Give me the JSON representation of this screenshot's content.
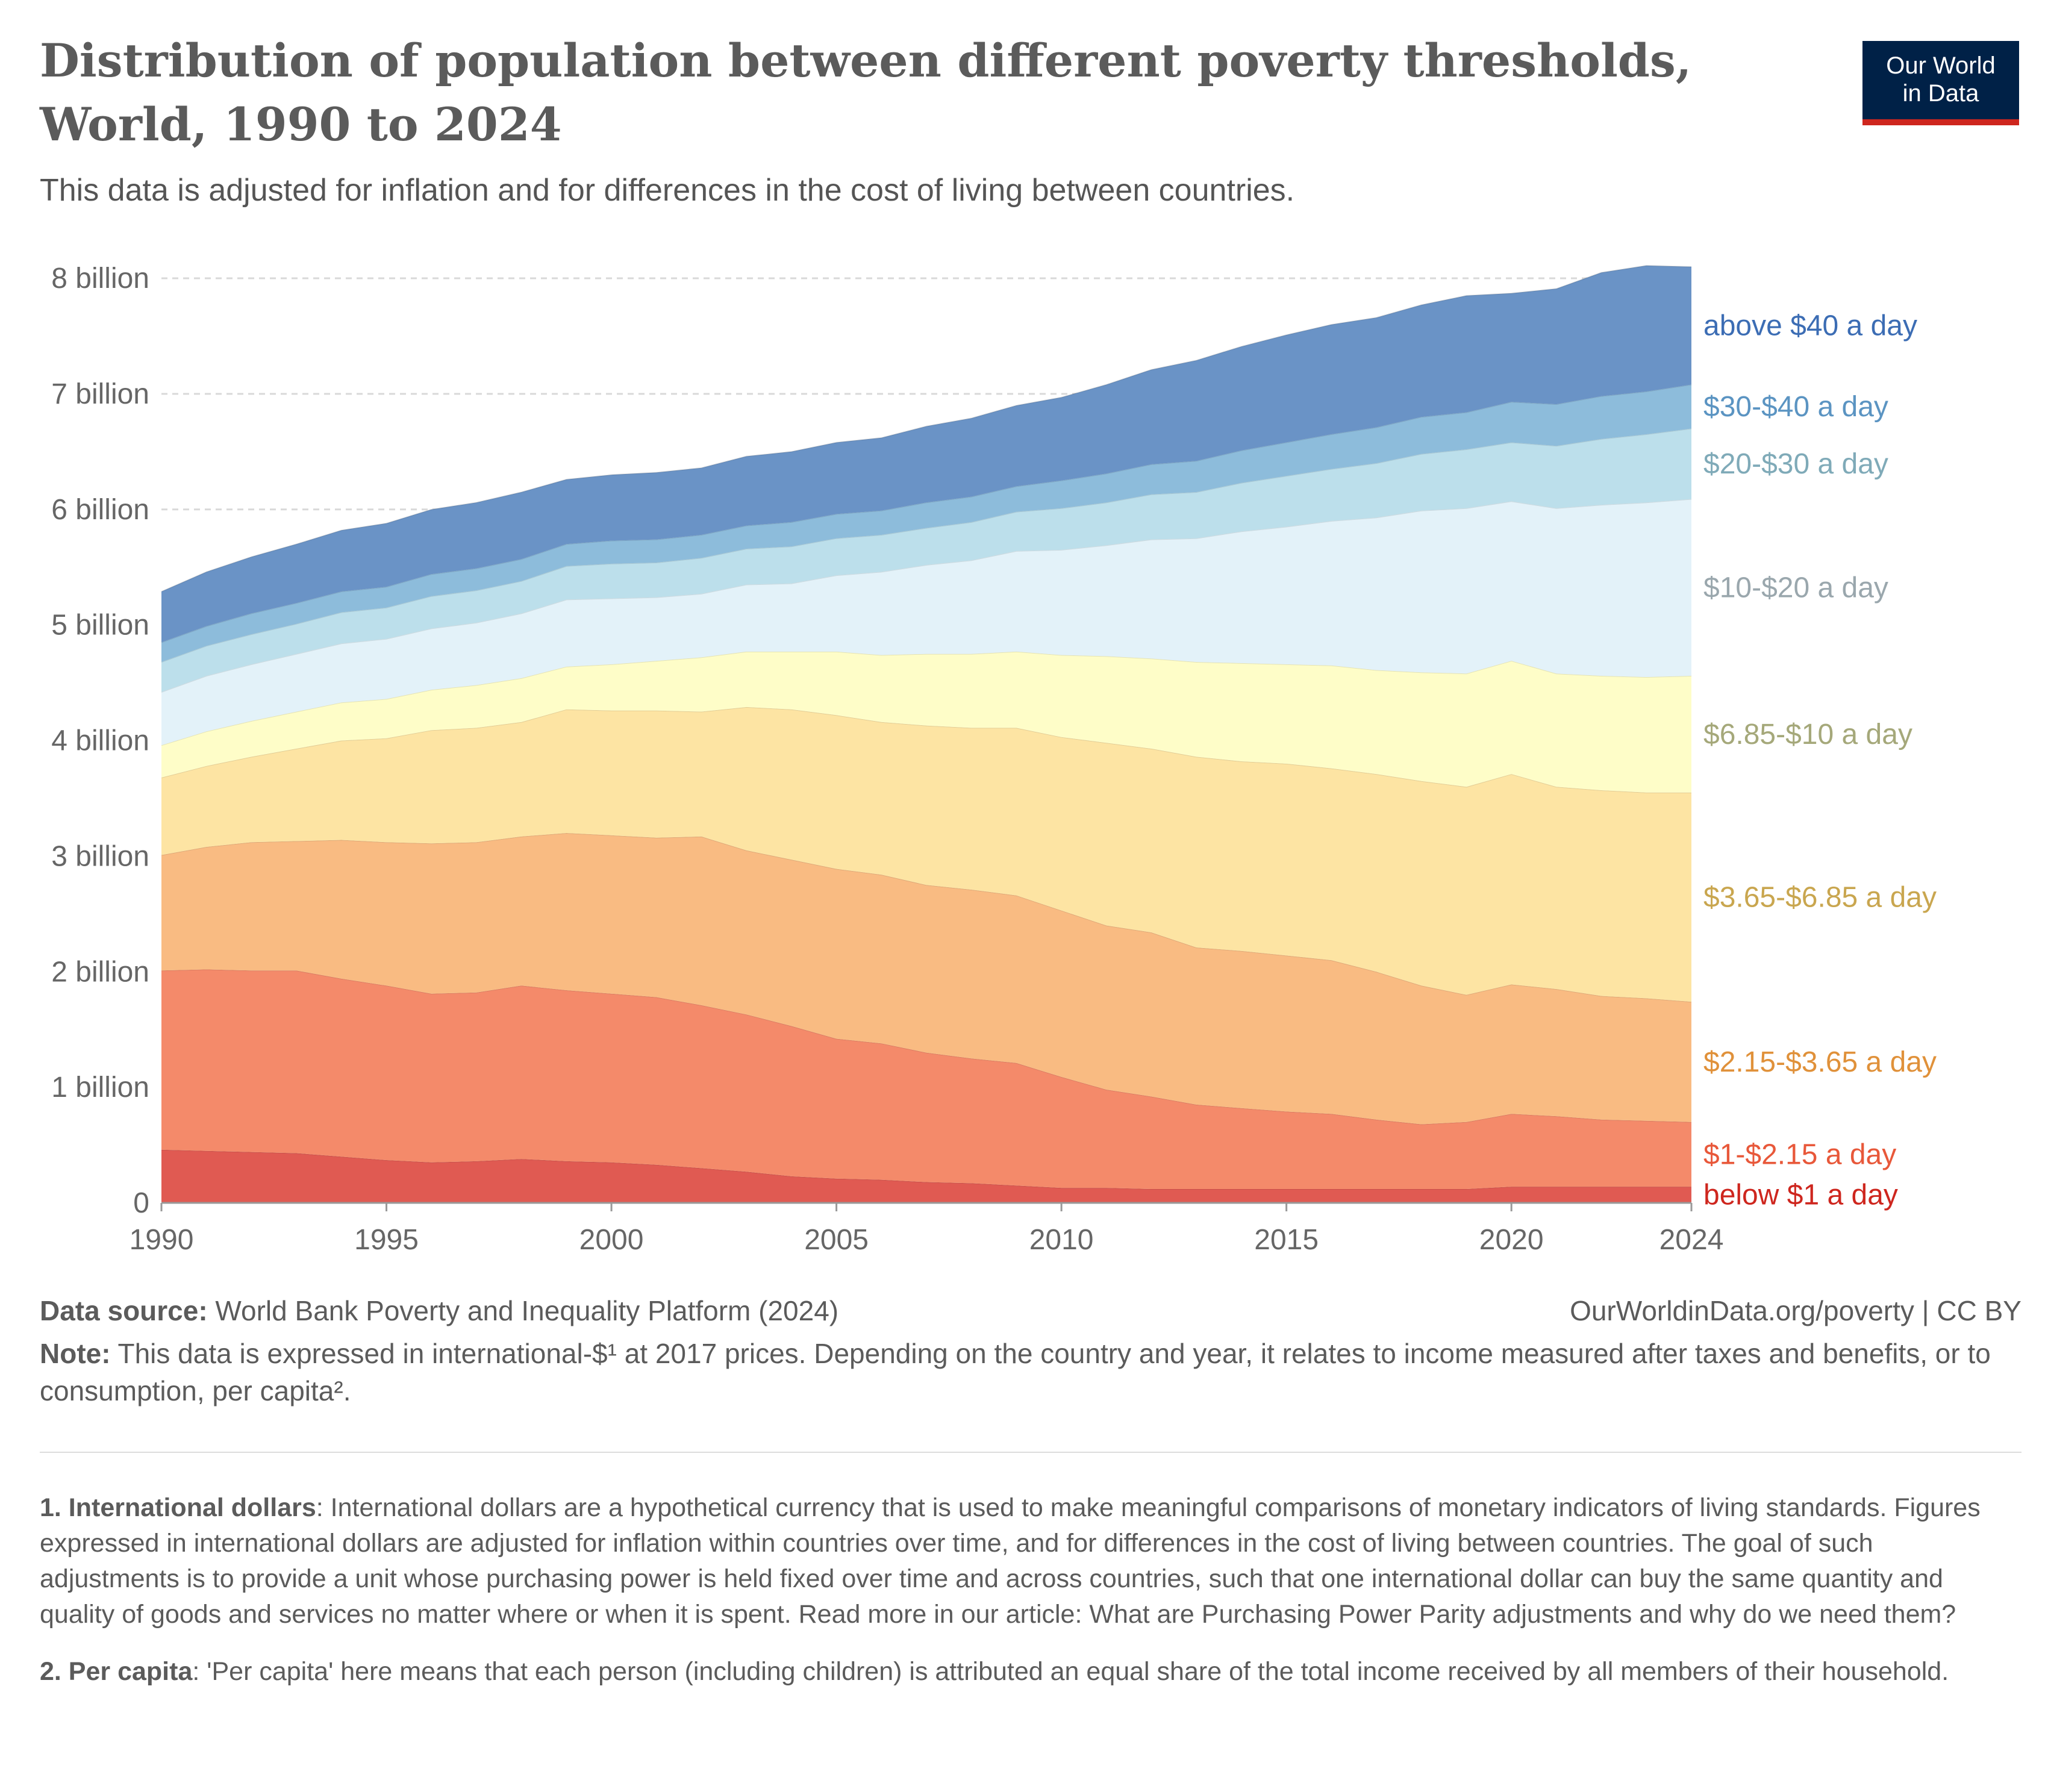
{
  "header": {
    "title": "Distribution of population between different poverty thresholds, World, 1990 to 2024",
    "subtitle": "This data is adjusted for inflation and for differences in the cost of living between countries.",
    "logo_line1": "Our World",
    "logo_line2": "in Data"
  },
  "colors": {
    "logo_bg": "#002147",
    "logo_accent": "#ce261e"
  },
  "chart_data": {
    "type": "area",
    "stacked": true,
    "title": "Distribution of population between different poverty thresholds, World, 1990 to 2024",
    "subtitle": "This data is adjusted for inflation and for differences in the cost of living between countries.",
    "xlim": [
      1990,
      2024
    ],
    "ylim": [
      0,
      8000000000
    ],
    "grid": "horizontal dashed",
    "x_ticks": [
      {
        "value": 1990,
        "label": "1990"
      },
      {
        "value": 1995,
        "label": "1995"
      },
      {
        "value": 2000,
        "label": "2000"
      },
      {
        "value": 2005,
        "label": "2005"
      },
      {
        "value": 2010,
        "label": "2010"
      },
      {
        "value": 2015,
        "label": "2015"
      },
      {
        "value": 2020,
        "label": "2020"
      },
      {
        "value": 2024,
        "label": "2024"
      }
    ],
    "y_ticks": [
      {
        "value": 0,
        "label": "0"
      },
      {
        "value": 1000000000,
        "label": "1 billion"
      },
      {
        "value": 2000000000,
        "label": "2 billion"
      },
      {
        "value": 3000000000,
        "label": "3 billion"
      },
      {
        "value": 4000000000,
        "label": "4 billion"
      },
      {
        "value": 5000000000,
        "label": "5 billion"
      },
      {
        "value": 6000000000,
        "label": "6 billion"
      },
      {
        "value": 7000000000,
        "label": "7 billion"
      },
      {
        "value": 8000000000,
        "label": "8 billion"
      }
    ],
    "x": [
      1990,
      1991,
      1992,
      1993,
      1994,
      1995,
      1996,
      1997,
      1998,
      1999,
      2000,
      2001,
      2002,
      2003,
      2004,
      2005,
      2006,
      2007,
      2008,
      2009,
      2010,
      2011,
      2012,
      2013,
      2014,
      2015,
      2016,
      2017,
      2018,
      2019,
      2020,
      2021,
      2022,
      2023,
      2024
    ],
    "series": [
      {
        "name": "below $1 a day",
        "color": "#e05a52",
        "label_color": "#ce261e",
        "values": [
          0.46,
          0.45,
          0.44,
          0.43,
          0.4,
          0.37,
          0.35,
          0.36,
          0.38,
          0.36,
          0.35,
          0.33,
          0.3,
          0.27,
          0.23,
          0.21,
          0.2,
          0.18,
          0.17,
          0.15,
          0.13,
          0.13,
          0.12,
          0.12,
          0.12,
          0.12,
          0.12,
          0.12,
          0.12,
          0.12,
          0.14,
          0.14,
          0.14,
          0.14,
          0.14
        ]
      },
      {
        "name": "$1-$2.15 a day",
        "color": "#f48a6a",
        "label_color": "#e8583a",
        "values": [
          1.55,
          1.57,
          1.57,
          1.58,
          1.54,
          1.51,
          1.46,
          1.46,
          1.5,
          1.48,
          1.46,
          1.45,
          1.41,
          1.36,
          1.3,
          1.21,
          1.18,
          1.12,
          1.08,
          1.06,
          0.96,
          0.85,
          0.8,
          0.73,
          0.7,
          0.67,
          0.65,
          0.6,
          0.56,
          0.58,
          0.63,
          0.61,
          0.58,
          0.57,
          0.56
        ]
      },
      {
        "name": "$2.15-$3.65 a day",
        "color": "#f9bb82",
        "label_color": "#e0913a",
        "values": [
          1.0,
          1.06,
          1.11,
          1.12,
          1.2,
          1.24,
          1.3,
          1.3,
          1.29,
          1.36,
          1.37,
          1.38,
          1.46,
          1.42,
          1.44,
          1.47,
          1.46,
          1.45,
          1.46,
          1.45,
          1.44,
          1.42,
          1.42,
          1.36,
          1.36,
          1.35,
          1.33,
          1.28,
          1.2,
          1.1,
          1.12,
          1.1,
          1.07,
          1.06,
          1.04
        ]
      },
      {
        "name": "$3.65-$6.85 a day",
        "color": "#fde4a3",
        "label_color": "#c9a64f",
        "values": [
          0.67,
          0.7,
          0.74,
          0.8,
          0.86,
          0.9,
          0.98,
          0.99,
          0.99,
          1.07,
          1.08,
          1.1,
          1.08,
          1.24,
          1.3,
          1.33,
          1.32,
          1.38,
          1.4,
          1.45,
          1.5,
          1.58,
          1.59,
          1.65,
          1.64,
          1.66,
          1.66,
          1.71,
          1.77,
          1.8,
          1.82,
          1.75,
          1.78,
          1.78,
          1.81
        ]
      },
      {
        "name": "$6.85-$10 a day",
        "color": "#fefdc8",
        "label_color": "#a5a87a",
        "values": [
          0.28,
          0.3,
          0.31,
          0.32,
          0.33,
          0.34,
          0.35,
          0.37,
          0.38,
          0.37,
          0.4,
          0.43,
          0.47,
          0.48,
          0.5,
          0.55,
          0.58,
          0.62,
          0.64,
          0.66,
          0.71,
          0.75,
          0.78,
          0.82,
          0.85,
          0.86,
          0.89,
          0.9,
          0.94,
          0.98,
          0.98,
          0.98,
          0.99,
          1.0,
          1.01
        ]
      },
      {
        "name": "$10-$20 a day",
        "color": "#e3f2f9",
        "label_color": "#9aa7ad",
        "values": [
          0.46,
          0.48,
          0.49,
          0.5,
          0.51,
          0.52,
          0.53,
          0.54,
          0.56,
          0.58,
          0.57,
          0.55,
          0.55,
          0.58,
          0.59,
          0.66,
          0.72,
          0.77,
          0.81,
          0.87,
          0.91,
          0.96,
          1.03,
          1.07,
          1.14,
          1.19,
          1.25,
          1.32,
          1.4,
          1.43,
          1.38,
          1.43,
          1.48,
          1.51,
          1.53
        ]
      },
      {
        "name": "$20-$30 a day",
        "color": "#bcdfeb",
        "label_color": "#7faab8",
        "values": [
          0.26,
          0.26,
          0.26,
          0.26,
          0.27,
          0.27,
          0.28,
          0.28,
          0.28,
          0.29,
          0.3,
          0.3,
          0.31,
          0.31,
          0.32,
          0.32,
          0.32,
          0.32,
          0.33,
          0.34,
          0.36,
          0.37,
          0.39,
          0.4,
          0.42,
          0.44,
          0.45,
          0.47,
          0.49,
          0.51,
          0.51,
          0.54,
          0.57,
          0.59,
          0.61
        ]
      },
      {
        "name": "$30-$40 a day",
        "color": "#8dbcdb",
        "label_color": "#5b94c2",
        "values": [
          0.17,
          0.17,
          0.18,
          0.18,
          0.18,
          0.18,
          0.19,
          0.19,
          0.19,
          0.19,
          0.2,
          0.2,
          0.2,
          0.2,
          0.21,
          0.21,
          0.21,
          0.22,
          0.22,
          0.22,
          0.24,
          0.25,
          0.26,
          0.27,
          0.28,
          0.29,
          0.3,
          0.31,
          0.32,
          0.32,
          0.35,
          0.36,
          0.37,
          0.37,
          0.38
        ]
      },
      {
        "name": "above $40 a day",
        "color": "#6a93c6",
        "label_color": "#3c6db4",
        "values": [
          0.44,
          0.47,
          0.49,
          0.51,
          0.53,
          0.55,
          0.56,
          0.57,
          0.58,
          0.56,
          0.57,
          0.58,
          0.58,
          0.6,
          0.61,
          0.62,
          0.63,
          0.66,
          0.68,
          0.7,
          0.72,
          0.77,
          0.82,
          0.87,
          0.9,
          0.93,
          0.95,
          0.95,
          0.97,
          1.01,
          0.94,
          1.0,
          1.07,
          1.09,
          1.02
        ]
      }
    ],
    "value_unit_multiplier": 1000000000,
    "legend": "right (inline labels)"
  },
  "footer": {
    "source_label": "Data source:",
    "source_text": " World Bank Poverty and Inequality Platform (2024)",
    "url_license": "OurWorldinData.org/poverty | CC BY",
    "note_label": "Note:",
    "note_text": " This data is expressed in international-$¹ at 2017 prices. Depending on the country and year, it relates to income measured after taxes and benefits, or to consumption, per capita²."
  },
  "footnotes": [
    {
      "label": "1. International dollars",
      "text": ": International dollars are a hypothetical currency that is used to make meaningful comparisons of monetary indicators of living standards. Figures expressed in international dollars are adjusted for inflation within countries over time, and for differences in the cost of living between countries. The goal of such adjustments is to provide a unit whose purchasing power is held fixed over time and across countries, such that one international dollar can buy the same quantity and quality of goods and services no matter where or when it is spent. Read more in our article: What are Purchasing Power Parity adjustments and why do we need them?"
    },
    {
      "label": "2. Per capita",
      "text": ": 'Per capita' here means that each person (including children) is attributed an equal share of the total income received by all members of their household."
    }
  ]
}
